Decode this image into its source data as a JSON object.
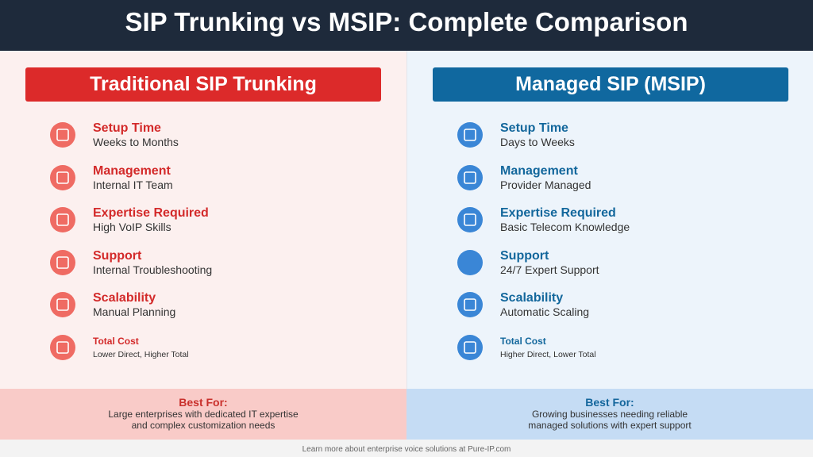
{
  "header": {
    "title": "SIP Trunking vs MSIP: Complete Comparison"
  },
  "columns": [
    {
      "heading": "Traditional SIP Trunking",
      "items": [
        {
          "label": "Setup Time",
          "value": "Weeks to Months"
        },
        {
          "label": "Management",
          "value": "Internal IT Team"
        },
        {
          "label": "Expertise Required",
          "value": "High VoIP Skills"
        },
        {
          "label": "Support",
          "value": "Internal Troubleshooting"
        },
        {
          "label": "Scalability",
          "value": "Manual Planning"
        },
        {
          "label": "Total Cost",
          "value": "Lower Direct, Higher Total"
        }
      ],
      "best_for": {
        "label": "Best For:",
        "lines": [
          "Large enterprises with dedicated IT expertise",
          "and complex customization needs"
        ]
      }
    },
    {
      "heading": "Managed SIP (MSIP)",
      "items": [
        {
          "label": "Setup Time",
          "value": "Days to Weeks"
        },
        {
          "label": "Management",
          "value": "Provider Managed"
        },
        {
          "label": "Expertise Required",
          "value": "Basic Telecom Knowledge"
        },
        {
          "label": "Support",
          "value": "24/7 Expert Support"
        },
        {
          "label": "Scalability",
          "value": "Automatic Scaling"
        },
        {
          "label": "Total Cost",
          "value": "Higher Direct, Lower Total"
        }
      ],
      "best_for": {
        "label": "Best For:",
        "lines": [
          "Growing businesses needing reliable",
          "managed solutions with expert support"
        ]
      }
    }
  ],
  "footer": {
    "text": "Learn more about enterprise voice solutions at Pure-IP.com"
  }
}
